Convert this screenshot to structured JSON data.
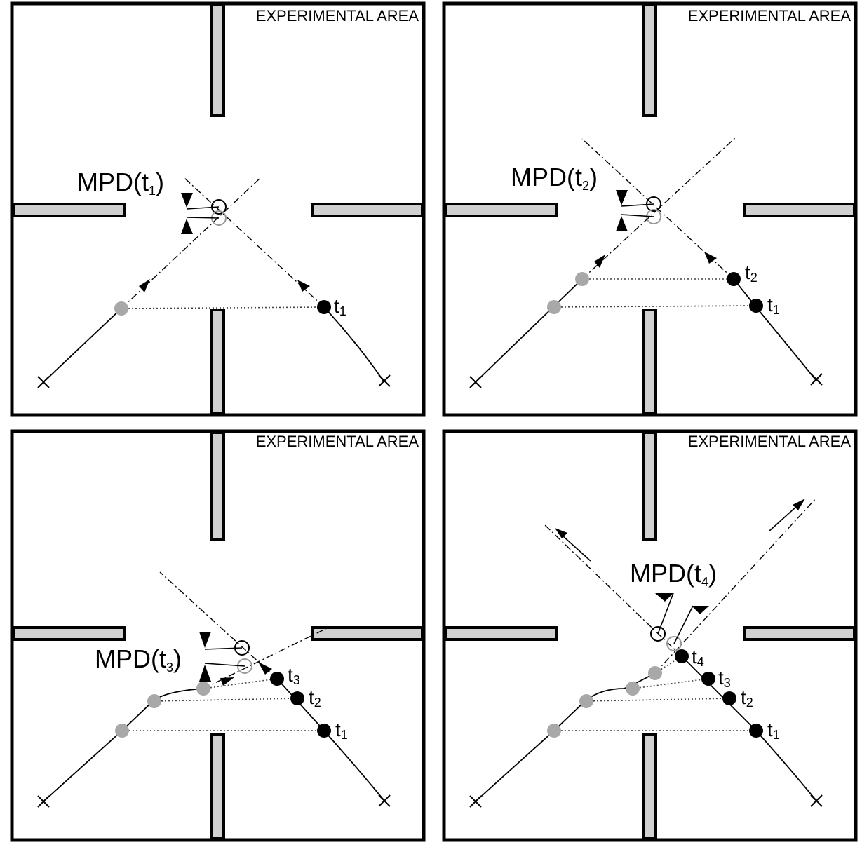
{
  "panels": [
    {
      "area_label": "EXPERIMENTAL AREA",
      "mpd_base": "MPD(t",
      "mpd_sub": "1",
      "mpd_close": ")",
      "times": [
        {
          "base": "t",
          "sub": "1"
        }
      ]
    },
    {
      "area_label": "EXPERIMENTAL AREA",
      "mpd_base": "MPD(t",
      "mpd_sub": "2",
      "mpd_close": ")",
      "times": [
        {
          "base": "t",
          "sub": "1"
        },
        {
          "base": "t",
          "sub": "2"
        }
      ]
    },
    {
      "area_label": "EXPERIMENTAL AREA",
      "mpd_base": "MPD(t",
      "mpd_sub": "3",
      "mpd_close": ")",
      "times": [
        {
          "base": "t",
          "sub": "1"
        },
        {
          "base": "t",
          "sub": "2"
        },
        {
          "base": "t",
          "sub": "3"
        }
      ]
    },
    {
      "area_label": "EXPERIMENTAL AREA",
      "mpd_base": "MPD(t",
      "mpd_sub": "4",
      "mpd_close": ")",
      "times": [
        {
          "base": "t",
          "sub": "1"
        },
        {
          "base": "t",
          "sub": "2"
        },
        {
          "base": "t",
          "sub": "3"
        },
        {
          "base": "t",
          "sub": "4"
        }
      ]
    }
  ],
  "colors": {
    "wall_fill": "#d0d0d0",
    "pedestrian_a": "#000000",
    "pedestrian_b": "#a8a8a8"
  }
}
